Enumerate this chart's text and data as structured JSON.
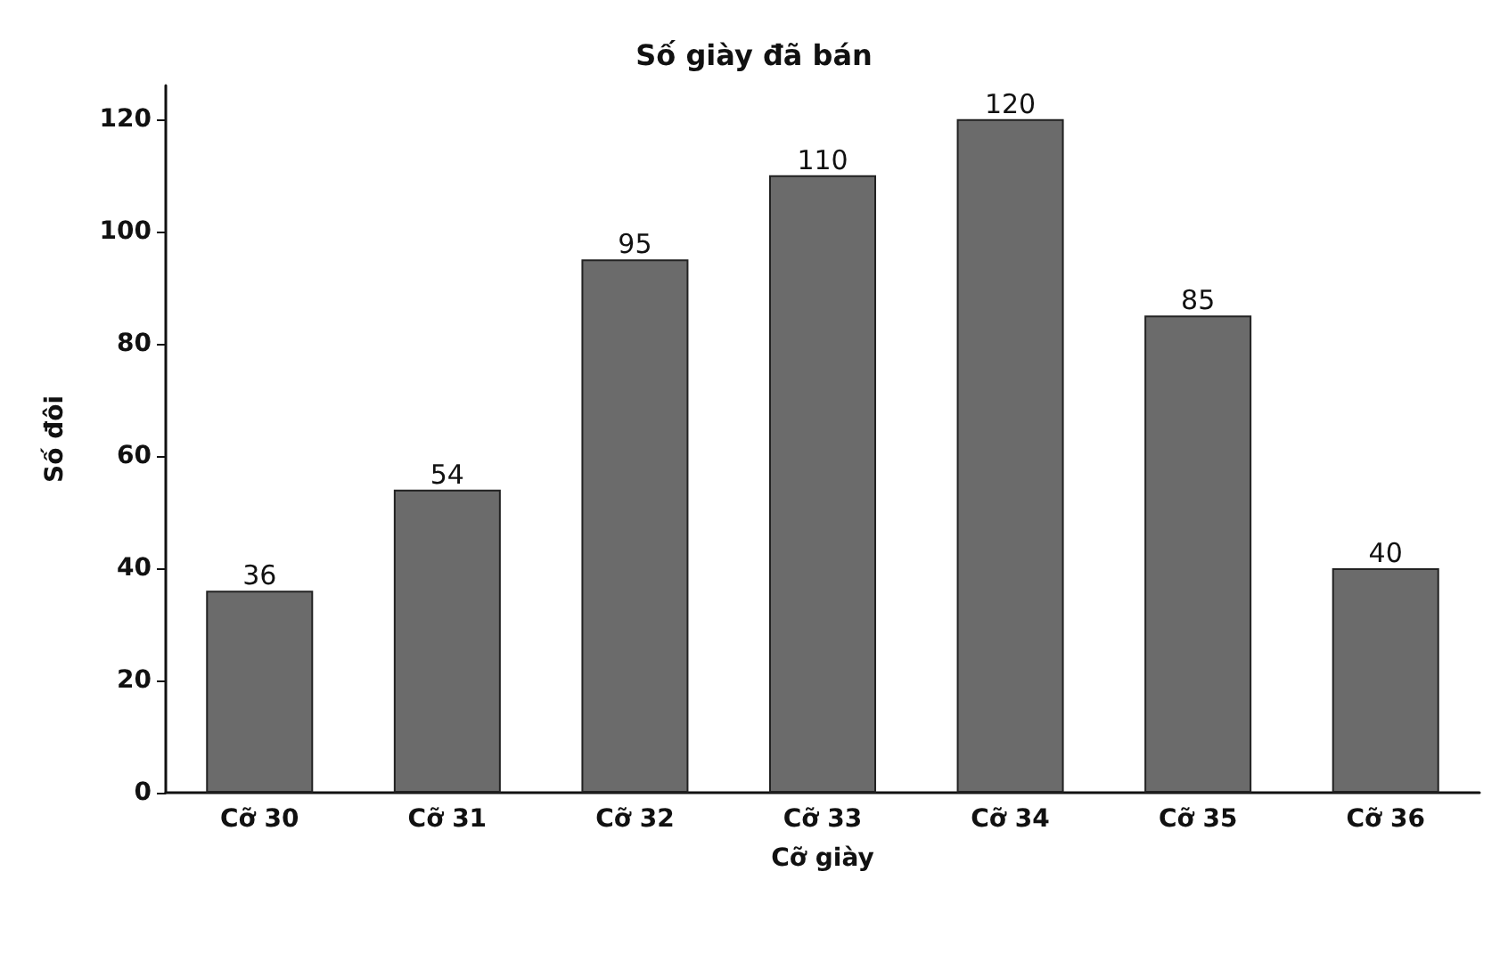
{
  "chart_data": {
    "type": "bar",
    "title": "Số giày đã bán",
    "xlabel": "Cỡ giày",
    "ylabel": "Số đôi",
    "categories": [
      "Cỡ 30",
      "Cỡ 31",
      "Cỡ 32",
      "Cỡ 33",
      "Cỡ 34",
      "Cỡ 35",
      "Cỡ 36"
    ],
    "values": [
      36,
      54,
      95,
      110,
      120,
      85,
      40
    ],
    "color": "#6b6b6b",
    "ylim": [
      0,
      126
    ],
    "yticks": [
      0,
      20,
      40,
      60,
      80,
      100,
      120
    ],
    "grid": false,
    "data_labels": true
  }
}
